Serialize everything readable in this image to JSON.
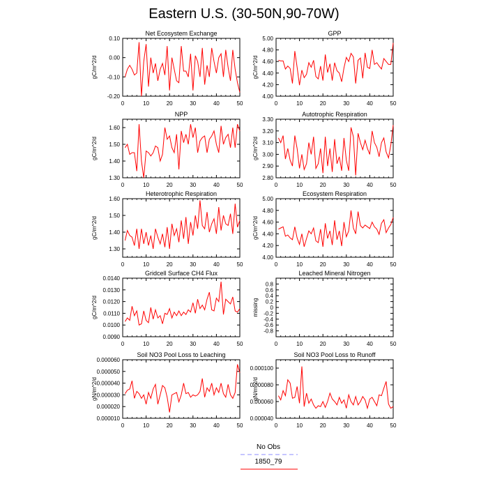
{
  "title": "Eastern U.S. (30-50N,90-70W)",
  "legend": {
    "items": [
      {
        "label": "No Obs",
        "color": "#8c8cff",
        "dashed": true
      },
      {
        "label": "1850_79",
        "color": "#ff0000",
        "dashed": false
      }
    ]
  },
  "chart_data": [
    {
      "type": "line",
      "title": "Net Ecosystem Exchange",
      "xlabel": "",
      "ylabel": "gC/m^2/d",
      "xlim": [
        0,
        50
      ],
      "ylim": [
        -0.2,
        0.1
      ],
      "xticks": [
        "0",
        "10",
        "20",
        "30",
        "40",
        "50"
      ],
      "yticks": [
        "-0.20",
        "-0.10",
        "0.00",
        "0.10"
      ],
      "ytick_values": [
        -0.2,
        -0.1,
        0.0,
        0.1
      ],
      "series": [
        {
          "color": "#ff0000",
          "x_start": 1,
          "values": [
            -0.1,
            -0.06,
            -0.04,
            -0.06,
            -0.09,
            -0.08,
            0.08,
            -0.2,
            -0.02,
            0.07,
            -0.15,
            0.0,
            -0.08,
            -0.03,
            -0.12,
            -0.06,
            -0.03,
            -0.09,
            0.06,
            -0.17,
            0.0,
            -0.06,
            -0.12,
            -0.13,
            0.06,
            -0.07,
            -0.07,
            -0.1,
            0.02,
            -0.17,
            0.01,
            -0.02,
            -0.1,
            0.05,
            -0.14,
            -0.04,
            -0.1,
            0.05,
            -0.02,
            -0.08,
            0.0,
            0.02,
            -0.1,
            0.04,
            -0.05,
            -0.12,
            0.04,
            -0.06,
            -0.13,
            -0.18
          ]
        }
      ]
    },
    {
      "type": "line",
      "title": "GPP",
      "xlabel": "",
      "ylabel": "gC/m^2/d",
      "xlim": [
        0,
        50
      ],
      "ylim": [
        4.0,
        5.0
      ],
      "xticks": [
        "0",
        "10",
        "20",
        "30",
        "40",
        "50"
      ],
      "yticks": [
        "4.00",
        "4.20",
        "4.40",
        "4.60",
        "4.80",
        "5.00"
      ],
      "ytick_values": [
        4.0,
        4.2,
        4.4,
        4.6,
        4.8,
        5.0
      ],
      "series": [
        {
          "color": "#ff0000",
          "x_start": 1,
          "values": [
            4.62,
            4.61,
            4.61,
            4.47,
            4.52,
            4.48,
            4.22,
            4.78,
            4.5,
            4.19,
            4.45,
            4.32,
            4.38,
            4.58,
            4.5,
            4.62,
            4.34,
            4.3,
            4.52,
            4.27,
            4.72,
            4.41,
            4.56,
            4.27,
            4.58,
            4.44,
            4.4,
            4.25,
            4.49,
            4.67,
            4.6,
            4.74,
            4.68,
            4.22,
            4.62,
            4.66,
            4.31,
            4.75,
            4.5,
            4.48,
            4.8,
            4.55,
            4.58,
            4.52,
            4.47,
            4.65,
            4.6,
            4.55,
            4.55,
            4.92
          ]
        }
      ]
    },
    {
      "type": "line",
      "title": "NPP",
      "xlabel": "",
      "ylabel": "gC/m^2/d",
      "xlim": [
        0,
        50
      ],
      "ylim": [
        1.3,
        1.65
      ],
      "xticks": [
        "0",
        "10",
        "20",
        "30",
        "40",
        "50"
      ],
      "yticks": [
        "1.30",
        "1.40",
        "1.50",
        "1.60"
      ],
      "ytick_values": [
        1.3,
        1.4,
        1.5,
        1.6
      ],
      "series": [
        {
          "color": "#ff0000",
          "x_start": 1,
          "values": [
            1.48,
            1.5,
            1.44,
            1.45,
            1.45,
            1.34,
            1.62,
            1.4,
            1.3,
            1.46,
            1.45,
            1.43,
            1.45,
            1.49,
            1.48,
            1.4,
            1.44,
            1.6,
            1.53,
            1.55,
            1.48,
            1.45,
            1.56,
            1.35,
            1.58,
            1.51,
            1.56,
            1.5,
            1.62,
            1.54,
            1.6,
            1.45,
            1.52,
            1.54,
            1.55,
            1.45,
            1.53,
            1.55,
            1.58,
            1.5,
            1.45,
            1.61,
            1.5,
            1.54,
            1.56,
            1.48,
            1.6,
            1.48,
            1.62,
            1.58
          ]
        }
      ]
    },
    {
      "type": "line",
      "title": "Autotrophic Respiration",
      "xlabel": "",
      "ylabel": "gC/m^2/d",
      "xlim": [
        0,
        50
      ],
      "ylim": [
        2.8,
        3.3
      ],
      "xticks": [
        "0",
        "10",
        "20",
        "30",
        "40",
        "50"
      ],
      "yticks": [
        "2.80",
        "2.90",
        "3.00",
        "3.10",
        "3.20",
        "3.30"
      ],
      "ytick_values": [
        2.8,
        2.9,
        3.0,
        3.1,
        3.2,
        3.3
      ],
      "series": [
        {
          "color": "#ff0000",
          "x_start": 1,
          "values": [
            3.14,
            3.1,
            3.16,
            2.96,
            3.05,
            2.95,
            2.9,
            3.16,
            3.05,
            2.88,
            3.0,
            2.87,
            2.92,
            3.1,
            3.0,
            3.15,
            2.88,
            2.92,
            3.05,
            2.84,
            3.15,
            2.9,
            3.05,
            2.85,
            3.13,
            2.92,
            2.98,
            2.86,
            3.14,
            2.95,
            2.86,
            3.23,
            3.15,
            2.82,
            3.18,
            3.1,
            3.04,
            3.12,
            3.05,
            3.0,
            3.2,
            3.1,
            3.06,
            2.98,
            3.1,
            3.14,
            3.02,
            2.97,
            3.08,
            3.25
          ]
        }
      ]
    },
    {
      "type": "line",
      "title": "Heterotrophic Respiration",
      "xlabel": "",
      "ylabel": "gC/m^2/d",
      "xlim": [
        0,
        50
      ],
      "ylim": [
        1.25,
        1.6
      ],
      "xticks": [
        "0",
        "10",
        "20",
        "30",
        "40",
        "50"
      ],
      "yticks": [
        "1.30",
        "1.40",
        "1.50",
        "1.60"
      ],
      "ytick_values": [
        1.3,
        1.4,
        1.5,
        1.6
      ],
      "series": [
        {
          "color": "#ff0000",
          "x_start": 1,
          "values": [
            1.35,
            1.41,
            1.38,
            1.37,
            1.32,
            1.42,
            1.3,
            1.42,
            1.33,
            1.4,
            1.32,
            1.38,
            1.3,
            1.42,
            1.37,
            1.33,
            1.39,
            1.31,
            1.43,
            1.3,
            1.45,
            1.38,
            1.42,
            1.34,
            1.47,
            1.36,
            1.49,
            1.33,
            1.46,
            1.38,
            1.5,
            1.42,
            1.59,
            1.44,
            1.42,
            1.52,
            1.4,
            1.45,
            1.48,
            1.39,
            1.55,
            1.41,
            1.5,
            1.45,
            1.44,
            1.51,
            1.39,
            1.57,
            1.43,
            1.47
          ]
        }
      ]
    },
    {
      "type": "line",
      "title": "Ecosystem Respiration",
      "xlabel": "",
      "ylabel": "gC/m^2/d",
      "xlim": [
        0,
        50
      ],
      "ylim": [
        4.0,
        5.0
      ],
      "xticks": [
        "0",
        "10",
        "20",
        "30",
        "40",
        "50"
      ],
      "yticks": [
        "4.00",
        "4.20",
        "4.40",
        "4.60",
        "4.80",
        "5.00"
      ],
      "ytick_values": [
        4.0,
        4.2,
        4.4,
        4.6,
        4.8,
        5.0
      ],
      "series": [
        {
          "color": "#ff0000",
          "x_start": 1,
          "values": [
            4.48,
            4.5,
            4.52,
            4.36,
            4.38,
            4.33,
            4.3,
            4.52,
            4.33,
            4.22,
            4.4,
            4.18,
            4.32,
            4.45,
            4.4,
            4.5,
            4.28,
            4.25,
            4.48,
            4.18,
            4.58,
            4.32,
            4.45,
            4.21,
            4.63,
            4.3,
            4.45,
            4.19,
            4.6,
            4.35,
            4.45,
            4.8,
            4.5,
            4.4,
            4.78,
            4.54,
            4.5,
            4.55,
            4.52,
            4.49,
            4.6,
            4.52,
            4.48,
            4.39,
            4.58,
            4.64,
            4.42,
            4.5,
            4.56,
            4.68
          ]
        }
      ]
    },
    {
      "type": "line",
      "title": "Gridcell Surface CH4 Flux",
      "xlabel": "",
      "ylabel": "gC/m^2/d",
      "xlim": [
        0,
        50
      ],
      "ylim": [
        0.009,
        0.014
      ],
      "xticks": [
        "0",
        "10",
        "20",
        "30",
        "40",
        "50"
      ],
      "yticks": [
        "0.0090",
        "0.0100",
        "0.0110",
        "0.0120",
        "0.0130",
        "0.0140"
      ],
      "ytick_values": [
        0.009,
        0.01,
        0.011,
        0.012,
        0.013,
        0.014
      ],
      "series": [
        {
          "color": "#ff0000",
          "x_start": 1,
          "values": [
            0.0103,
            0.0106,
            0.0104,
            0.0116,
            0.0108,
            0.0112,
            0.01,
            0.0101,
            0.0112,
            0.0104,
            0.0102,
            0.0115,
            0.0105,
            0.0113,
            0.0106,
            0.0108,
            0.0101,
            0.011,
            0.0109,
            0.0114,
            0.0106,
            0.0111,
            0.0108,
            0.0112,
            0.0108,
            0.0111,
            0.0109,
            0.0113,
            0.0111,
            0.0119,
            0.011,
            0.0122,
            0.0114,
            0.0117,
            0.0113,
            0.0122,
            0.0128,
            0.0113,
            0.0112,
            0.0123,
            0.012,
            0.0137,
            0.0109,
            0.0122,
            0.012,
            0.0118,
            0.0124,
            0.0112,
            0.0111,
            0.0114
          ]
        }
      ]
    },
    {
      "type": "line",
      "title": "Leached Mineral Nitrogen",
      "xlabel": "",
      "ylabel": "missing",
      "xlim": [
        0,
        50
      ],
      "ylim": [
        -1.0,
        1.0
      ],
      "xticks": [
        "0",
        "10",
        "20",
        "30",
        "40",
        "50"
      ],
      "yticks": [
        "-0.8",
        "-0.6",
        "-0.4",
        "-0.2",
        "0",
        "0.2",
        "0.4",
        "0.6",
        "0.8"
      ],
      "ytick_values": [
        -0.8,
        -0.6,
        -0.4,
        -0.2,
        0,
        0.2,
        0.4,
        0.6,
        0.8
      ],
      "series": []
    },
    {
      "type": "line",
      "title": "Soil NO3 Pool Loss to Leaching",
      "xlabel": "",
      "ylabel": "gN/m^2/d",
      "xlim": [
        0,
        50
      ],
      "ylim": [
        1e-05,
        6e-05
      ],
      "xticks": [
        "0",
        "10",
        "20",
        "30",
        "40",
        "50"
      ],
      "yticks": [
        "0.000010",
        "0.000020",
        "0.000030",
        "0.000040",
        "0.000050",
        "0.000060"
      ],
      "ytick_values": [
        1e-05,
        2e-05,
        3e-05,
        4e-05,
        5e-05,
        6e-05
      ],
      "series": [
        {
          "color": "#ff0000",
          "x_start": 1,
          "values": [
            3.1e-05,
            3.4e-05,
            3.5e-05,
            4.2e-05,
            2.7e-05,
            3.3e-05,
            3.1e-05,
            2.7e-05,
            3e-05,
            2.2e-05,
            3.2e-05,
            2.7e-05,
            3.5e-05,
            3.9e-05,
            2.2e-05,
            3e-05,
            3.8e-05,
            3.6e-05,
            2.8e-05,
            1.5e-05,
            3e-05,
            3.1e-05,
            3.2e-05,
            2.4e-05,
            3e-05,
            4e-05,
            3.1e-05,
            3.2e-05,
            2.8e-05,
            3e-05,
            2.9e-05,
            3e-05,
            3.3e-05,
            4.4e-05,
            2.8e-05,
            3.6e-05,
            3.3e-05,
            4e-05,
            3e-05,
            3.6e-05,
            3.2e-05,
            4e-05,
            3.1e-05,
            2.8e-05,
            3.9e-05,
            3e-05,
            2.7e-05,
            3.2e-05,
            5.6e-05,
            4.9e-05
          ]
        }
      ]
    },
    {
      "type": "line",
      "title": "Soil NO3 Pool Loss to Runoff",
      "xlabel": "",
      "ylabel": "gN/m^2/d",
      "xlim": [
        0,
        50
      ],
      "ylim": [
        4e-05,
        0.00011
      ],
      "xticks": [
        "0",
        "10",
        "20",
        "30",
        "40",
        "50"
      ],
      "yticks": [
        "0.000040",
        "0.000060",
        "0.000080",
        "0.000100"
      ],
      "ytick_values": [
        4e-05,
        6e-05,
        8e-05,
        0.0001
      ],
      "series": [
        {
          "color": "#ff0000",
          "x_start": 1,
          "values": [
            6.7e-05,
            6.2e-05,
            7.3e-05,
            6.7e-05,
            8.6e-05,
            8.2e-05,
            6.4e-05,
            6.5e-05,
            7.8e-05,
            5.8e-05,
            0.000102,
            5.4e-05,
            7e-05,
            5.8e-05,
            6.3e-05,
            5.6e-05,
            5.2e-05,
            5.5e-05,
            5.4e-05,
            6e-05,
            5.3e-05,
            6e-05,
            7e-05,
            6.3e-05,
            6e-05,
            5.6e-05,
            6.5e-05,
            5.8e-05,
            6.2e-05,
            5.2e-05,
            6.8e-05,
            6e-05,
            5.6e-05,
            6.6e-05,
            5.6e-05,
            6e-05,
            6.6e-05,
            6.2e-05,
            5.2e-05,
            6.3e-05,
            6.5e-05,
            6e-05,
            5.5e-05,
            6.8e-05,
            6.7e-05,
            7.6e-05,
            8.4e-05,
            5.7e-05,
            5.2e-05,
            5.4e-05
          ]
        }
      ]
    }
  ]
}
